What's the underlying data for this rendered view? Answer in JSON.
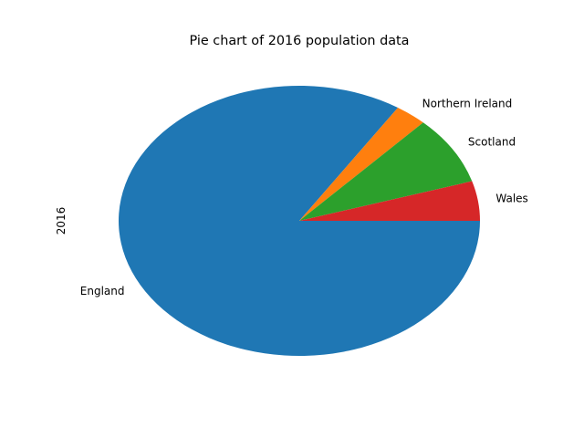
{
  "chart_data": {
    "type": "pie",
    "title": "Pie chart of 2016 population data",
    "ylabel": "2016",
    "categories": [
      "England",
      "Northern Ireland",
      "Scotland",
      "Wales"
    ],
    "values": [
      55268100,
      1862100,
      5404700,
      3113200
    ],
    "colors": [
      "#1f77b4",
      "#ff7f0e",
      "#2ca02c",
      "#d62728"
    ],
    "legend": "none",
    "startangle_deg": 0,
    "direction": "clockwise"
  }
}
